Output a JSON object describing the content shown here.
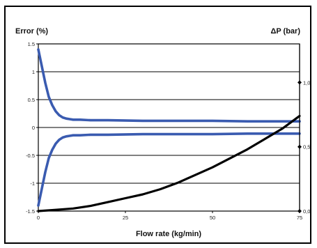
{
  "chart_data": {
    "type": "line",
    "title": "",
    "xlabel": "Flow rate (kg/min)",
    "ylabel_left": "Error (%)",
    "ylabel_right": "ΔP (bar)",
    "xlim": [
      0,
      75
    ],
    "ylim_left": [
      -1.5,
      1.5
    ],
    "ylim_right": [
      0.0,
      1.3
    ],
    "x_ticks": [
      "0",
      "25",
      "50",
      "75"
    ],
    "y_left_ticks": [
      "-1.5",
      "-1",
      "-0.5",
      "0",
      "0.5",
      "1",
      "1.5"
    ],
    "y_right_ticks": [
      "0,0",
      "0,5",
      "1,0"
    ],
    "grid": true,
    "series": [
      {
        "axis": "left",
        "color": "#3a5bb0",
        "x": [
          0,
          1,
          2,
          3,
          4,
          5,
          6,
          7,
          8,
          9,
          10,
          12,
          15,
          20,
          30,
          40,
          50,
          60,
          70,
          75
        ],
        "values": [
          1.4,
          1.1,
          0.8,
          0.55,
          0.4,
          0.29,
          0.22,
          0.18,
          0.16,
          0.15,
          0.14,
          0.14,
          0.13,
          0.13,
          0.12,
          0.12,
          0.12,
          0.11,
          0.11,
          0.11
        ]
      },
      {
        "axis": "left",
        "color": "#3a5bb0",
        "x": [
          0,
          1,
          2,
          3,
          4,
          5,
          6,
          7,
          8,
          9,
          10,
          12,
          15,
          20,
          30,
          40,
          50,
          60,
          70,
          75
        ],
        "values": [
          -1.4,
          -1.1,
          -0.8,
          -0.55,
          -0.4,
          -0.29,
          -0.22,
          -0.18,
          -0.16,
          -0.15,
          -0.14,
          -0.14,
          -0.13,
          -0.13,
          -0.12,
          -0.12,
          -0.12,
          -0.11,
          -0.11,
          -0.11
        ]
      },
      {
        "axis": "right",
        "color": "#000000",
        "x": [
          0,
          5,
          10,
          15,
          20,
          25,
          30,
          35,
          40,
          45,
          50,
          55,
          60,
          65,
          70,
          75
        ],
        "values": [
          0.0,
          0.01,
          0.02,
          0.04,
          0.07,
          0.1,
          0.13,
          0.17,
          0.22,
          0.28,
          0.34,
          0.41,
          0.48,
          0.56,
          0.64,
          0.74
        ]
      }
    ]
  }
}
